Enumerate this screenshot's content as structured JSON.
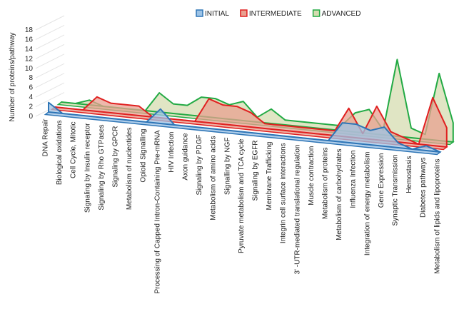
{
  "chart_data": {
    "type": "area3d",
    "y_label": "Number of proteins/pathway",
    "categories": [
      "DNA Repair",
      "Biological oxidations",
      "Cell Cycle, Mitotic",
      "Signaling by Insulin receptor",
      "Signaling by Rho GTPases",
      "Signaling by GPCR",
      "Metabolism of nucleotides",
      "Opioid Signalling",
      "Processing of Capped Intron-Containing Pre-mRNA",
      "HIV Infection",
      "Axon guidance",
      "Signaling by PDGF",
      "Metabolism of amino acids",
      "Signalling by NGF",
      "Pyruvate metabolism and TCA cycle",
      "Signaling by EGFR",
      "Membrane Trafficking",
      "Integrin cell surface interactions",
      "3' -UTR-mediated translational regulation",
      "Muscle contraction",
      "Metabolism of proteins",
      "Metabolism of carbohydrates",
      "Influenza Infection",
      "Integration of energy metabolism",
      "Gene Expression",
      "Synaptic Transmission",
      "Hemostasis",
      "Diabetes pathways",
      "Metabolism of lipids and lipoproteins"
    ],
    "series": [
      {
        "name": "INITIAL",
        "color": "#2e75b6",
        "fill": "#9dc3e6",
        "values": [
          2,
          0,
          0,
          0,
          0,
          0,
          0,
          0,
          3,
          0,
          0,
          0,
          0,
          0,
          0,
          0,
          0,
          0,
          0,
          0,
          0,
          4,
          4,
          3,
          4,
          1,
          0,
          1,
          0
        ]
      },
      {
        "name": "INTERMEDIATE",
        "color": "#e02020",
        "fill": "#e8a090",
        "values": [
          0,
          0,
          0,
          3,
          2,
          2,
          2,
          0,
          0,
          0,
          0,
          5,
          4,
          4,
          3,
          1,
          1,
          1,
          1,
          1,
          1,
          6,
          1,
          7,
          2,
          1,
          0,
          10,
          4
        ]
      },
      {
        "name": "ADVANCED",
        "color": "#22aa44",
        "fill": "#d5dcb0",
        "values": [
          0,
          0,
          1,
          0,
          0,
          0,
          0,
          4,
          2,
          2,
          4,
          4,
          3,
          4,
          1,
          3,
          1,
          1,
          1,
          1,
          1,
          4,
          5,
          1,
          16,
          2,
          1,
          14,
          4
        ]
      }
    ],
    "ylim": [
      0,
      18
    ],
    "yticks": [
      0,
      2,
      4,
      6,
      8,
      10,
      12,
      14,
      16,
      18
    ],
    "grid": true
  }
}
